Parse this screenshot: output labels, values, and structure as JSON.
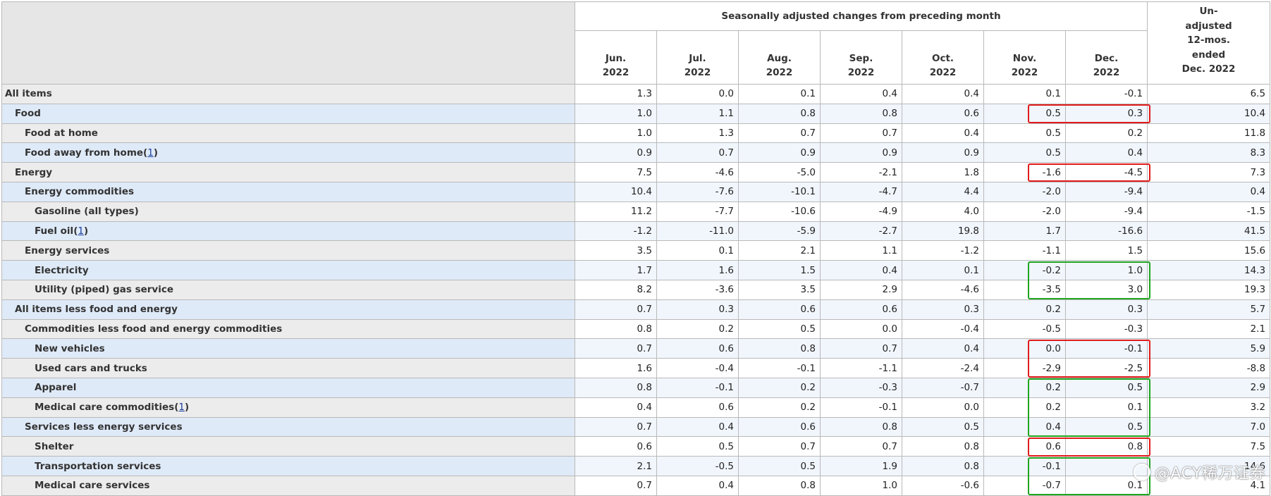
{
  "header": {
    "group_label": "Seasonally adjusted changes from preceding month",
    "months": [
      {
        "month": "Jun.",
        "year": "2022"
      },
      {
        "month": "Jul.",
        "year": "2022"
      },
      {
        "month": "Aug.",
        "year": "2022"
      },
      {
        "month": "Sep.",
        "year": "2022"
      },
      {
        "month": "Oct.",
        "year": "2022"
      },
      {
        "month": "Nov.",
        "year": "2022"
      },
      {
        "month": "Dec.",
        "year": "2022"
      }
    ],
    "unadjusted": [
      "Un-",
      "adjusted",
      "12-mos.",
      "ended",
      "Dec. 2022"
    ]
  },
  "footnote_marker": "1",
  "rows": [
    {
      "label": "All items",
      "indent": 0,
      "values": [
        "1.3",
        "0.0",
        "0.1",
        "0.4",
        "0.4",
        "0.1",
        "-0.1",
        "6.5"
      ]
    },
    {
      "label": "Food",
      "indent": 1,
      "values": [
        "1.0",
        "1.1",
        "0.8",
        "0.8",
        "0.6",
        "0.5",
        "0.3",
        "10.4"
      ]
    },
    {
      "label": "Food at home",
      "indent": 2,
      "values": [
        "1.0",
        "1.3",
        "0.7",
        "0.7",
        "0.4",
        "0.5",
        "0.2",
        "11.8"
      ]
    },
    {
      "label": "Food away from home",
      "indent": 2,
      "footnote": true,
      "values": [
        "0.9",
        "0.7",
        "0.9",
        "0.9",
        "0.9",
        "0.5",
        "0.4",
        "8.3"
      ]
    },
    {
      "label": "Energy",
      "indent": 1,
      "values": [
        "7.5",
        "-4.6",
        "-5.0",
        "-2.1",
        "1.8",
        "-1.6",
        "-4.5",
        "7.3"
      ]
    },
    {
      "label": "Energy commodities",
      "indent": 2,
      "values": [
        "10.4",
        "-7.6",
        "-10.1",
        "-4.7",
        "4.4",
        "-2.0",
        "-9.4",
        "0.4"
      ]
    },
    {
      "label": "Gasoline (all types)",
      "indent": 3,
      "values": [
        "11.2",
        "-7.7",
        "-10.6",
        "-4.9",
        "4.0",
        "-2.0",
        "-9.4",
        "-1.5"
      ]
    },
    {
      "label": "Fuel oil",
      "indent": 3,
      "footnote": true,
      "values": [
        "-1.2",
        "-11.0",
        "-5.9",
        "-2.7",
        "19.8",
        "1.7",
        "-16.6",
        "41.5"
      ]
    },
    {
      "label": "Energy services",
      "indent": 2,
      "values": [
        "3.5",
        "0.1",
        "2.1",
        "1.1",
        "-1.2",
        "-1.1",
        "1.5",
        "15.6"
      ]
    },
    {
      "label": "Electricity",
      "indent": 3,
      "values": [
        "1.7",
        "1.6",
        "1.5",
        "0.4",
        "0.1",
        "-0.2",
        "1.0",
        "14.3"
      ]
    },
    {
      "label": "Utility (piped) gas service",
      "indent": 3,
      "values": [
        "8.2",
        "-3.6",
        "3.5",
        "2.9",
        "-4.6",
        "-3.5",
        "3.0",
        "19.3"
      ]
    },
    {
      "label": "All items less food and energy",
      "indent": 1,
      "values": [
        "0.7",
        "0.3",
        "0.6",
        "0.6",
        "0.3",
        "0.2",
        "0.3",
        "5.7"
      ]
    },
    {
      "label": "Commodities less food and energy commodities",
      "indent": 2,
      "values": [
        "0.8",
        "0.2",
        "0.5",
        "0.0",
        "-0.4",
        "-0.5",
        "-0.3",
        "2.1"
      ]
    },
    {
      "label": "New vehicles",
      "indent": 3,
      "values": [
        "0.7",
        "0.6",
        "0.8",
        "0.7",
        "0.4",
        "0.0",
        "-0.1",
        "5.9"
      ]
    },
    {
      "label": "Used cars and trucks",
      "indent": 3,
      "values": [
        "1.6",
        "-0.4",
        "-0.1",
        "-1.1",
        "-2.4",
        "-2.9",
        "-2.5",
        "-8.8"
      ]
    },
    {
      "label": "Apparel",
      "indent": 3,
      "values": [
        "0.8",
        "-0.1",
        "0.2",
        "-0.3",
        "-0.7",
        "0.2",
        "0.5",
        "2.9"
      ]
    },
    {
      "label": "Medical care commodities",
      "indent": 3,
      "footnote": true,
      "values": [
        "0.4",
        "0.6",
        "0.2",
        "-0.1",
        "0.0",
        "0.2",
        "0.1",
        "3.2"
      ]
    },
    {
      "label": "Services less energy services",
      "indent": 2,
      "values": [
        "0.7",
        "0.4",
        "0.6",
        "0.8",
        "0.5",
        "0.4",
        "0.5",
        "7.0"
      ]
    },
    {
      "label": "Shelter",
      "indent": 3,
      "values": [
        "0.6",
        "0.5",
        "0.7",
        "0.7",
        "0.8",
        "0.6",
        "0.8",
        "7.5"
      ]
    },
    {
      "label": "Transportation services",
      "indent": 3,
      "values": [
        "2.1",
        "-0.5",
        "0.5",
        "1.9",
        "0.8",
        "-0.1",
        "",
        "14.6"
      ]
    },
    {
      "label": "Medical care services",
      "indent": 3,
      "values": [
        "0.7",
        "0.4",
        "0.8",
        "1.0",
        "-0.6",
        "-0.7",
        "0.1",
        "4.1"
      ]
    }
  ],
  "highlights": [
    {
      "rows": [
        1
      ],
      "color": "#e01b1b"
    },
    {
      "rows": [
        4
      ],
      "color": "#e01b1b"
    },
    {
      "rows": [
        9,
        10
      ],
      "color": "#1fa51f"
    },
    {
      "rows": [
        13,
        14
      ],
      "color": "#e01b1b"
    },
    {
      "rows": [
        15,
        17
      ],
      "color": "#1fa51f"
    },
    {
      "rows": [
        18
      ],
      "color": "#e01b1b"
    },
    {
      "rows": [
        19,
        20
      ],
      "color": "#1fa51f"
    }
  ],
  "watermark": "@ACY稀万证券"
}
